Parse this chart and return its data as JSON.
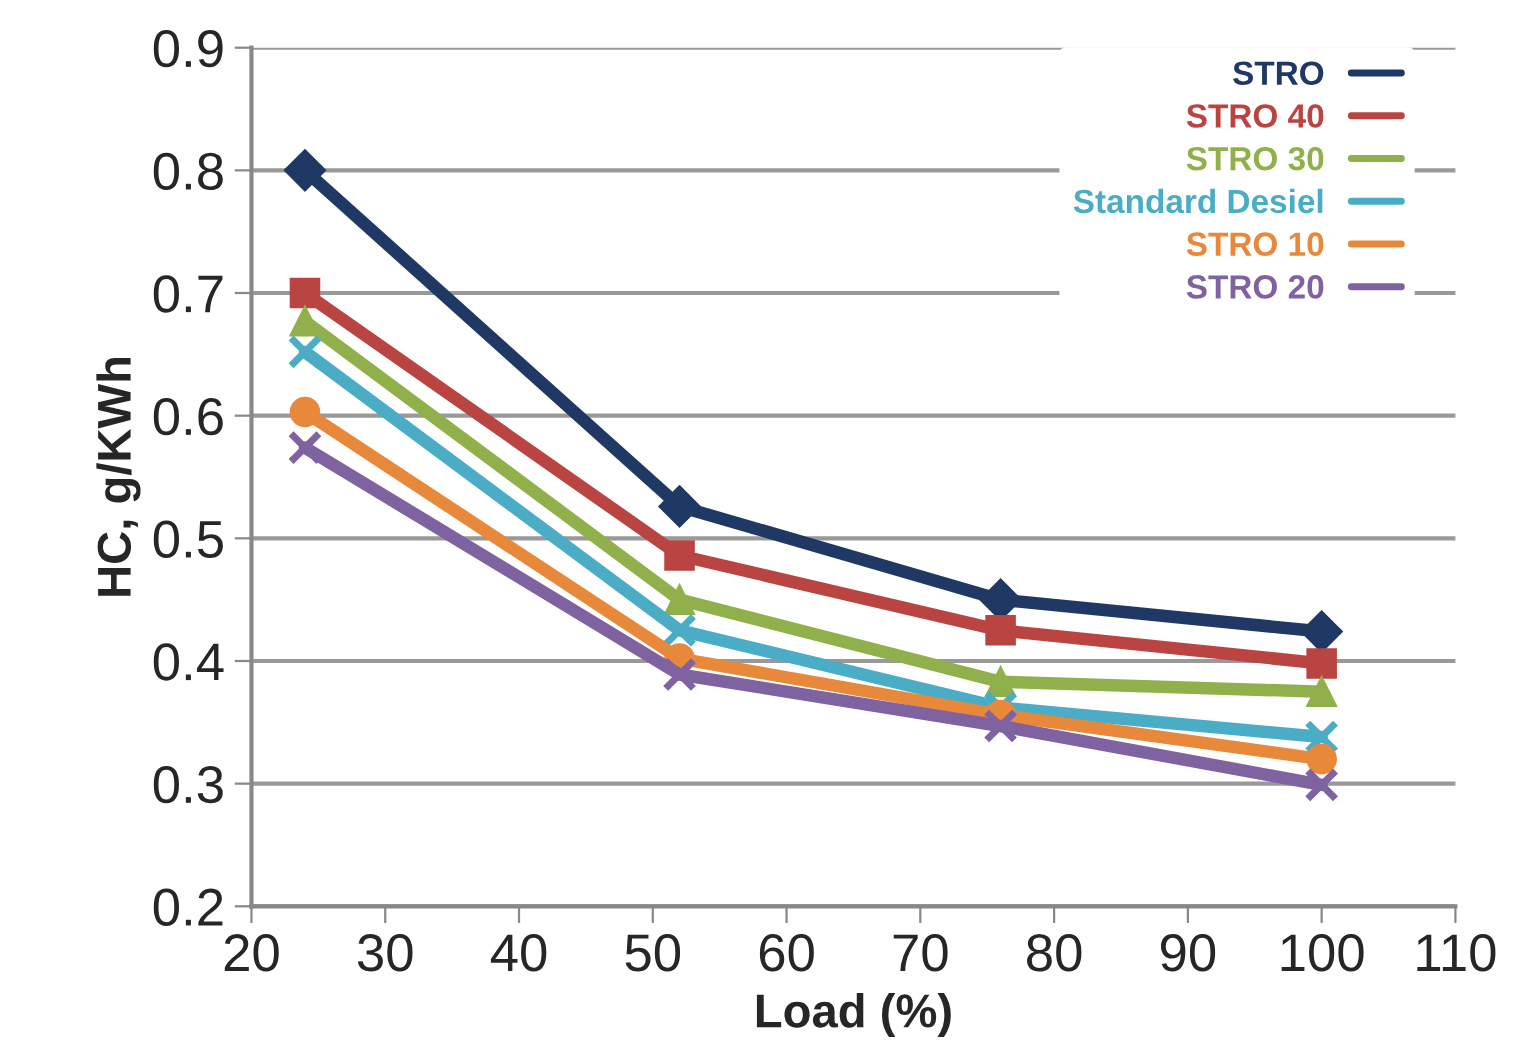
{
  "chart_data": {
    "type": "line",
    "xlabel": "Load (%)",
    "ylabel": "HC, g/KWh",
    "x": [
      24,
      52,
      76,
      100
    ],
    "series": [
      {
        "name": "STRO",
        "color": "#1f3864",
        "marker": "diamond",
        "values": [
          0.8,
          0.526,
          0.45,
          0.424
        ]
      },
      {
        "name": "STRO 40",
        "color": "#b94441",
        "marker": "square",
        "values": [
          0.7,
          0.486,
          0.425,
          0.398
        ]
      },
      {
        "name": "STRO 30",
        "color": "#8fb04a",
        "marker": "triangle",
        "values": [
          0.677,
          0.45,
          0.383,
          0.375
        ]
      },
      {
        "name": "Standard Desiel",
        "color": "#4bacc6",
        "marker": "cross",
        "values": [
          0.652,
          0.425,
          0.362,
          0.338
        ]
      },
      {
        "name": "STRO 10",
        "color": "#e8883a",
        "marker": "circle",
        "values": [
          0.603,
          0.402,
          0.356,
          0.32
        ]
      },
      {
        "name": "STRO 20",
        "color": "#7f63a1",
        "marker": "cross",
        "values": [
          0.574,
          0.389,
          0.347,
          0.299
        ]
      }
    ],
    "xlim": [
      20,
      110
    ],
    "xticks": [
      20,
      30,
      40,
      50,
      60,
      70,
      80,
      90,
      100,
      110
    ],
    "ylim": [
      0.2,
      0.9
    ],
    "yticks": [
      0.2,
      0.3,
      0.4,
      0.5,
      0.6,
      0.7,
      0.8,
      0.9
    ],
    "grid": "y",
    "legend": "top right"
  }
}
